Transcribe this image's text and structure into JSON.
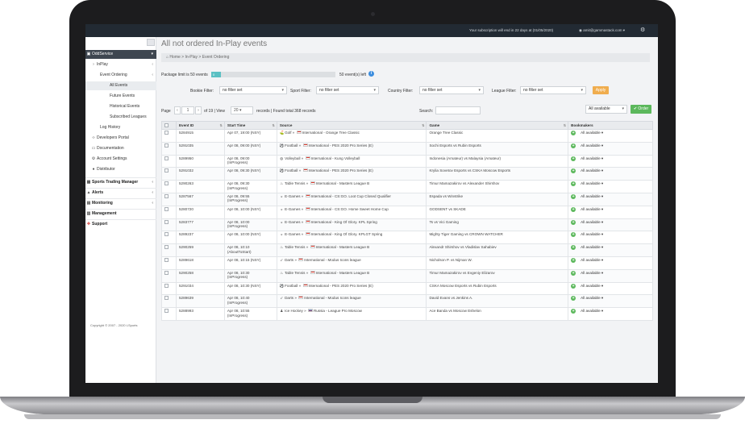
{
  "topbar": {
    "subscription_text": "Your subscription will end in 22 days at (01/05/2020)",
    "user_email": "amit@gammastack.com"
  },
  "sidebar": {
    "items": [
      {
        "label": "OddService",
        "icon": "odds-icon"
      },
      {
        "label": "InPlay",
        "icon": "arrow-icon"
      },
      {
        "label": "Event Ordering"
      },
      {
        "label": "All Events"
      },
      {
        "label": "Future Events"
      },
      {
        "label": "Historical Events"
      },
      {
        "label": "Subscribed Leagues"
      },
      {
        "label": "Log History"
      },
      {
        "label": "Developers Portal",
        "icon": "code-icon"
      },
      {
        "label": "Documentation",
        "icon": "folder-icon"
      },
      {
        "label": "Account Settings",
        "icon": "gear-icon"
      },
      {
        "label": "Distributor",
        "icon": "user-icon"
      },
      {
        "label": "Sports Trading Manager",
        "icon": "sports-icon"
      },
      {
        "label": "Alerts",
        "icon": "bell-icon"
      },
      {
        "label": "Monitoring",
        "icon": "chart-icon"
      },
      {
        "label": "Management",
        "icon": "management-icon"
      },
      {
        "label": "Support",
        "icon": "support-icon"
      }
    ],
    "copyright": "Copyright © 2007 - 2020 LSports"
  },
  "main": {
    "title": "All not ordered In-Play events",
    "breadcrumb": [
      "Home",
      "In-Play",
      "Event Ordering"
    ],
    "package_label": "Package limit is 50 events",
    "package_used": "0",
    "package_left": "50 event(s) left",
    "filters": {
      "bookie_label": "Bookie Filter:",
      "sport_label": "Sport Filter:",
      "country_label": "Country Filter:",
      "league_label": "League Filter:",
      "value": "no filter set",
      "apply_label": "Apply"
    },
    "pager": {
      "page_label": "Page",
      "page_value": "1",
      "of_label": "of 19 | View",
      "view_value": "20",
      "records_label": "records | Found total 368 records",
      "search_label": "Search:",
      "availability": "All available",
      "order_label": "Order"
    },
    "columns": [
      "Event ID",
      "Start Time",
      "Source",
      "Game",
      "Bookmakers"
    ],
    "rows": [
      {
        "id": "5284915",
        "time": "Apr 07, 19:00 (NSY)",
        "status": "",
        "sport": "Golf",
        "sport_icon": "golf-icon",
        "league": "International - Orange Tree Classic",
        "flag": "intl",
        "game": "Orange Tree Classic",
        "bm": "All available"
      },
      {
        "id": "5291035",
        "time": "Apr 08, 09:00 (NSY)",
        "status": "",
        "sport": "Football",
        "sport_icon": "football-icon",
        "league": "International - PES 2020 Pro Series (E)",
        "flag": "intl",
        "game": "Sochi Esports vs Rubin Esports",
        "bm": "All available"
      },
      {
        "id": "5289950",
        "time": "Apr 08, 09:00",
        "status": "(InProgress)",
        "sport": "Volleyball",
        "sport_icon": "volleyball-icon",
        "league": "International - Kung Volleyball",
        "flag": "intl",
        "game": "Indonesia (Amateur) vs Malaysia (Amateur)",
        "bm": "All available"
      },
      {
        "id": "5291032",
        "time": "Apr 08, 09:30 (NSY)",
        "status": "",
        "sport": "Football",
        "sport_icon": "football-icon",
        "league": "International - PES 2020 Pro Series (E)",
        "flag": "intl",
        "game": "Krylia Sovetov Esports vs CSKA Moscow Esports",
        "bm": "All available"
      },
      {
        "id": "5290263",
        "time": "Apr 08, 09:30",
        "status": "(InProgress)",
        "sport": "Table Tennis",
        "sport_icon": "table-tennis-icon",
        "league": "International - Masters League B",
        "flag": "intl",
        "game": "Timur Mamazakirov vs Alexander Shirshov",
        "bm": "All available"
      },
      {
        "id": "5287567",
        "time": "Apr 08, 09:55",
        "status": "(InProgress)",
        "sport": "E-Games",
        "sport_icon": "egames-icon",
        "league": "International - CS:GO. Loot Cup Closed Qualifier",
        "flag": "intl",
        "game": "Espada vs Winstrike",
        "bm": "All available"
      },
      {
        "id": "5280720",
        "time": "Apr 08, 10:00 (NSY)",
        "status": "",
        "sport": "E-Games",
        "sport_icon": "egames-icon",
        "league": "International - CS:GO. Home Sweet Home Cup",
        "flag": "intl",
        "game": "GODSENT vs SKADE",
        "bm": "All available"
      },
      {
        "id": "5283777",
        "time": "Apr 08, 10:00",
        "status": "(InProgress)",
        "sport": "E-Games",
        "sport_icon": "egames-icon",
        "league": "International - King Of Glory. KPL Spring",
        "flag": "intl",
        "game": "Ts vs Vici Gaming",
        "bm": "All available"
      },
      {
        "id": "5289237",
        "time": "Apr 08, 10:00 (NSY)",
        "status": "",
        "sport": "E-Games",
        "sport_icon": "egames-icon",
        "league": "International - King Of Glory. KPLGT Spring",
        "flag": "intl",
        "game": "Mighty Tiger Gaming vs CROWN WATCHER",
        "bm": "All available"
      },
      {
        "id": "5290259",
        "time": "Apr 08, 10:10",
        "status": "(AboutToStart)",
        "sport": "Table Tennis",
        "sport_icon": "table-tennis-icon",
        "league": "International - Masters League B",
        "flag": "intl",
        "game": "Alexandr Shirshov vs Vladislav Sahabiev",
        "bm": "All available"
      },
      {
        "id": "5289618",
        "time": "Apr 08, 10:15 (NSY)",
        "status": "",
        "sport": "Darts",
        "sport_icon": "darts-icon",
        "league": "International - Modus Icons league",
        "flag": "intl",
        "game": "Nicholson P. vs Nijman W.",
        "bm": "All available"
      },
      {
        "id": "5290258",
        "time": "Apr 08, 10:30",
        "status": "(InProgress)",
        "sport": "Table Tennis",
        "sport_icon": "table-tennis-icon",
        "league": "International - Masters League B",
        "flag": "intl",
        "game": "Timur Mamazakirov vs Evgeniy Elizarov",
        "bm": "All available"
      },
      {
        "id": "5291034",
        "time": "Apr 08, 10:30 (NSY)",
        "status": "",
        "sport": "Football",
        "sport_icon": "football-icon",
        "league": "International - PES 2020 Pro Series (E)",
        "flag": "intl",
        "game": "CSKA Moscow Esports vs Rubin Esports",
        "bm": "All available"
      },
      {
        "id": "5289639",
        "time": "Apr 08, 10:40",
        "status": "(InProgress)",
        "sport": "Darts",
        "sport_icon": "darts-icon",
        "league": "International - Modus Icons league",
        "flag": "intl",
        "game": "David Evans vs Jenkins A.",
        "bm": "All available"
      },
      {
        "id": "5288993",
        "time": "Apr 08, 10:55",
        "status": "(InProgress)",
        "sport": "Ice Hockey",
        "sport_icon": "ice-hockey-icon",
        "league": "Russia - League Pro Moscow",
        "flag": "ru",
        "game": "Ace Banda vs Moscow Eshelon",
        "bm": "All available"
      }
    ]
  }
}
